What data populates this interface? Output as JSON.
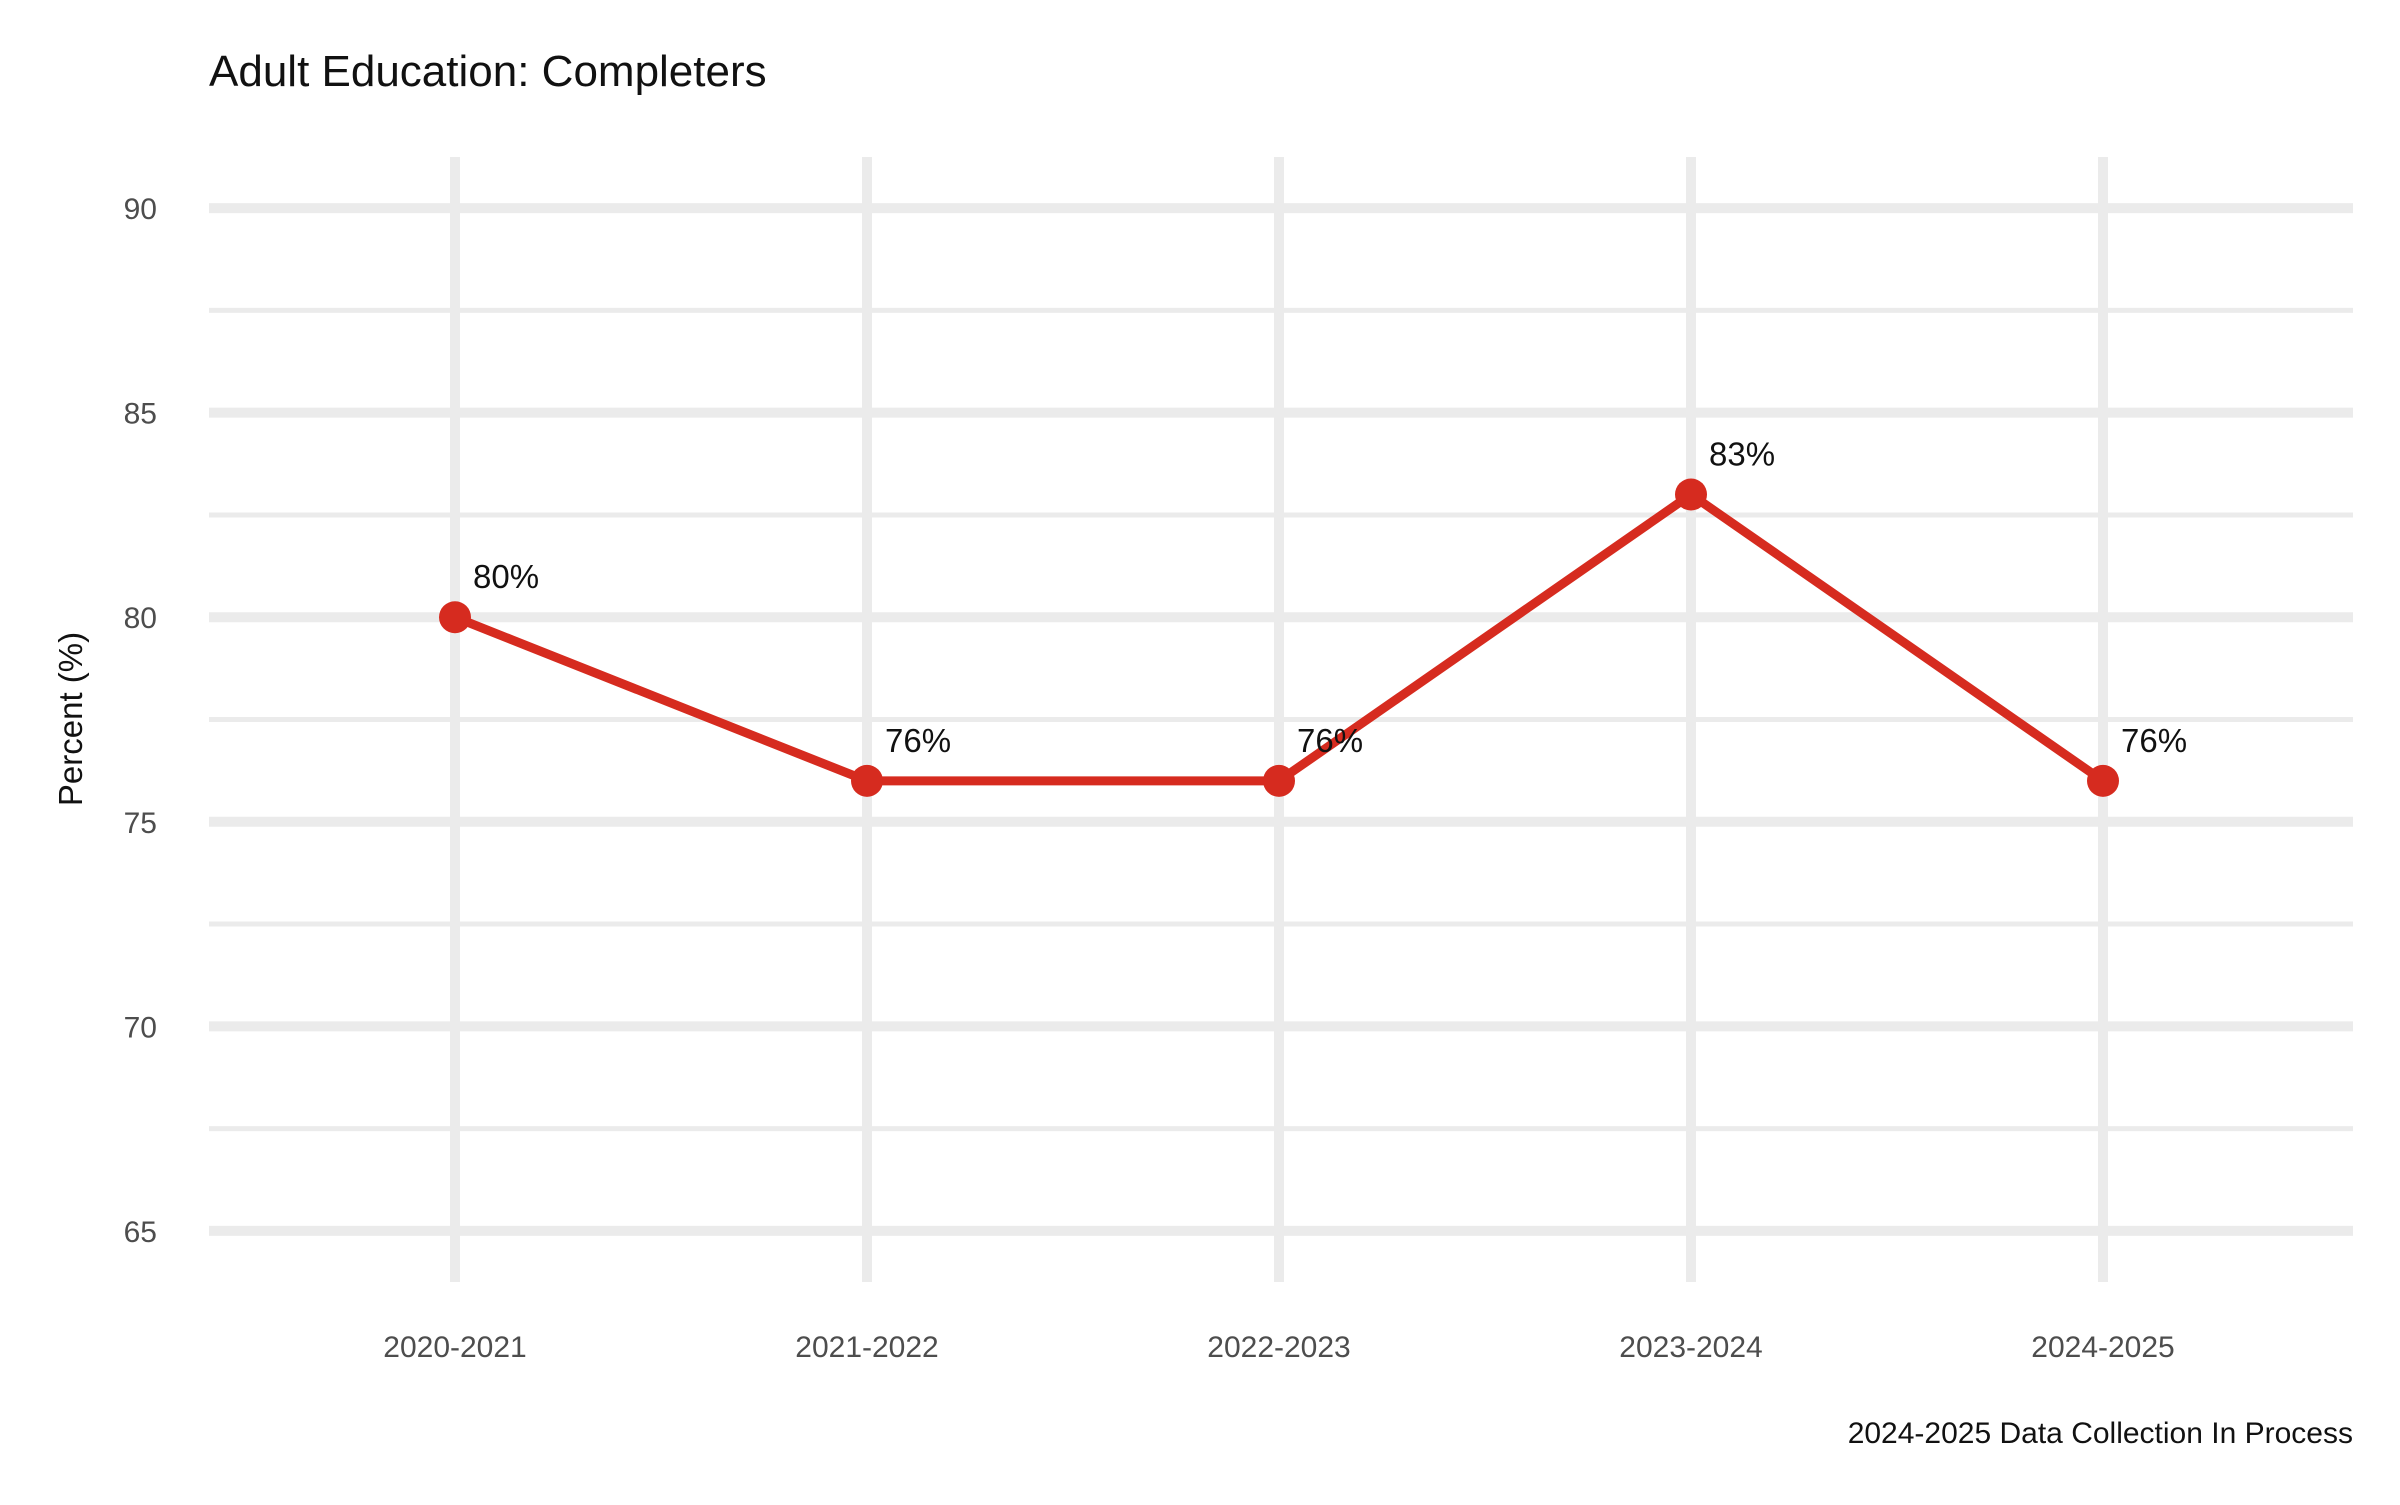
{
  "chart_data": {
    "type": "line",
    "title": "Adult Education: Completers",
    "xlabel": "",
    "ylabel": "Percent (%)",
    "caption": "2024-2025 Data Collection In Process",
    "categories": [
      "2020-2021",
      "2021-2022",
      "2022-2023",
      "2023-2024",
      "2024-2025"
    ],
    "series": [
      {
        "values": [
          80,
          76,
          76,
          83,
          76
        ],
        "labels": [
          "80%",
          "76%",
          "76%",
          "83%",
          "76%"
        ],
        "color": "#d62b1f"
      }
    ],
    "ylim": [
      63.75,
      91.25
    ],
    "yticks": [
      65,
      70,
      75,
      80,
      85,
      90
    ],
    "ytick_labels": [
      "65",
      "70",
      "75",
      "80",
      "85",
      "90"
    ],
    "grid": true,
    "legend": "none"
  }
}
